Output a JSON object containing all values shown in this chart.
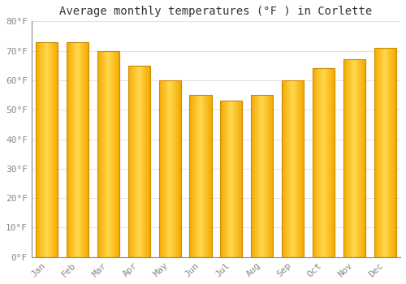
{
  "title": "Average monthly temperatures (°F ) in Corlette",
  "months": [
    "Jan",
    "Feb",
    "Mar",
    "Apr",
    "May",
    "Jun",
    "Jul",
    "Aug",
    "Sep",
    "Oct",
    "Nov",
    "Dec"
  ],
  "values": [
    73,
    73,
    70,
    65,
    60,
    55,
    53,
    55,
    60,
    64,
    67,
    71
  ],
  "bar_color_center": "#FFD84D",
  "bar_color_edge": "#F5A800",
  "bar_edge_color": "#CC8800",
  "ylim": [
    0,
    80
  ],
  "yticks": [
    0,
    10,
    20,
    30,
    40,
    50,
    60,
    70,
    80
  ],
  "ytick_labels": [
    "0°F",
    "10°F",
    "20°F",
    "30°F",
    "40°F",
    "50°F",
    "60°F",
    "70°F",
    "80°F"
  ],
  "background_color": "#FFFFFF",
  "grid_color": "#DDDDDD",
  "title_fontsize": 10,
  "tick_fontsize": 8,
  "font_family": "monospace"
}
